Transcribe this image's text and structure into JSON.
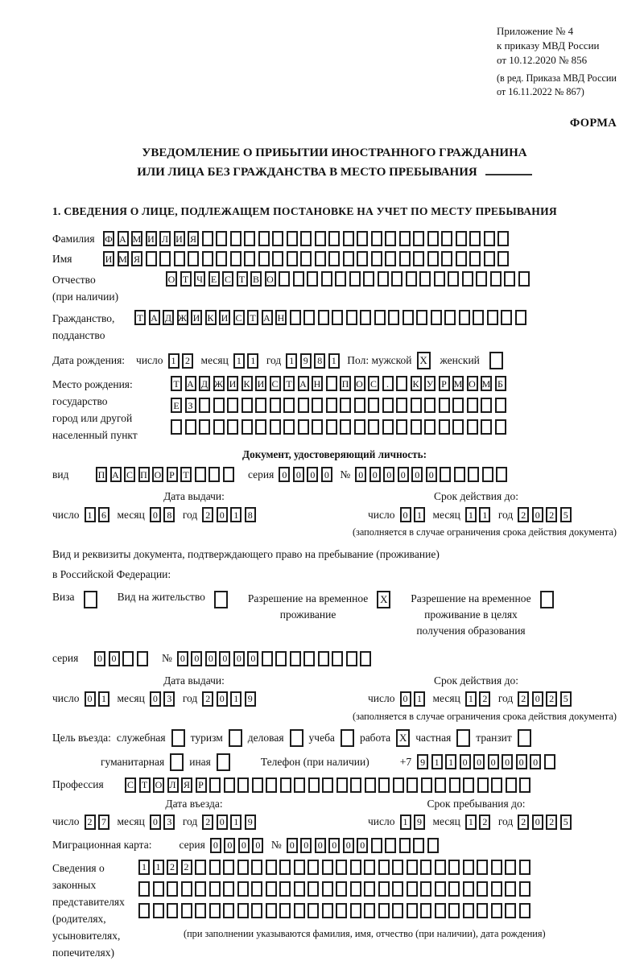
{
  "ink": "#1c1c1c",
  "header": {
    "line1": "Приложение № 4",
    "line2": "к приказу МВД России",
    "line3": "от 10.12.2020 № 856",
    "line4": "(в ред. Приказа МВД России",
    "line5": "от 16.11.2022 № 867)",
    "forma": "ФОРМА"
  },
  "title": {
    "line1": "УВЕДОМЛЕНИЕ О ПРИБЫТИИ ИНОСТРАННОГО ГРАЖДАНИНА",
    "line2": "ИЛИ ЛИЦА БЕЗ ГРАЖДАНСТВА В МЕСТО ПРЕБЫВАНИЯ"
  },
  "section1": "1. СВЕДЕНИЯ О ЛИЦЕ, ПОДЛЕЖАЩЕМ ПОСТАНОВКЕ НА УЧЕТ ПО МЕСТУ ПРЕБЫВАНИЯ",
  "surname": {
    "label": "Фамилия",
    "value": "ФАМИЛИЯ",
    "cells": 29
  },
  "firstname": {
    "label": "Имя",
    "value": "ИМЯ",
    "cells": 29
  },
  "patronymic": {
    "label1": "Отчество",
    "label2": "(при наличии)",
    "value": "ОТЧЕСТВО",
    "cells": 26
  },
  "citizenship": {
    "label1": "Гражданство,",
    "label2": "подданство",
    "value": "ТАДЖИКИСТАН",
    "cells": 28
  },
  "birth": {
    "label": "Дата рождения:",
    "day_label": "число",
    "day": {
      "value": "12",
      "cells": 2
    },
    "month_label": "месяц",
    "month": {
      "value": "11",
      "cells": 2
    },
    "year_label": "год",
    "year": {
      "value": "1981",
      "cells": 4
    },
    "sex_label": "Пол: мужской",
    "male_mark": "X",
    "female_label": "женский",
    "female_mark": ""
  },
  "birthplace": {
    "label1": "Место рождения:",
    "label2": "государство",
    "label3": "город или другой",
    "label4": "населенный пункт",
    "row1": {
      "value": "ТАДЖИКИСТАН ПОС. КУРМОМБ",
      "cells": 24
    },
    "row2": {
      "value": "ЕЗ",
      "cells": 24
    },
    "row3": {
      "value": "",
      "cells": 24
    }
  },
  "iddoc": {
    "heading": "Документ, удостоверяющий личность:",
    "kind_label": "вид",
    "kind": {
      "value": "ПАСПОРТ",
      "cells": 10
    },
    "series_label": "серия",
    "series": {
      "value": "0000",
      "cells": 4
    },
    "number_label": "№",
    "number": {
      "value": "000000",
      "cells": 11
    },
    "issue": {
      "header": "Дата выдачи:",
      "day_label": "число",
      "day": {
        "value": "16",
        "cells": 2
      },
      "month_label": "месяц",
      "month": {
        "value": "08",
        "cells": 2
      },
      "year_label": "год",
      "year": {
        "value": "2018",
        "cells": 4
      }
    },
    "valid": {
      "header": "Срок действия до:",
      "day_label": "число",
      "day": {
        "value": "01",
        "cells": 2
      },
      "month_label": "месяц",
      "month": {
        "value": "11",
        "cells": 2
      },
      "year_label": "год",
      "year": {
        "value": "2025",
        "cells": 4
      }
    },
    "note": "(заполняется в случае ограничения срока действия документа)"
  },
  "staydoc": {
    "intro1": "Вид и реквизиты документа, подтверждающего право на пребывание (проживание)",
    "intro2": "в Российской Федерации:",
    "visa_label": "Виза",
    "visa_mark": "",
    "residence_label": "Вид на жительство",
    "residence_mark": "",
    "rvp_label": "Разрешение на временное\nпроживание",
    "rvp_mark": "X",
    "rvp_edu_label": "Разрешение на временное\nпроживание в целях\nполучения образования",
    "rvp_edu_mark": "",
    "series_label": "серия",
    "series": {
      "value": "00",
      "cells": 4
    },
    "number_label": "№",
    "number": {
      "value": "000000",
      "cells": 14
    },
    "issue": {
      "header": "Дата выдачи:",
      "day_label": "число",
      "day": {
        "value": "01",
        "cells": 2
      },
      "month_label": "месяц",
      "month": {
        "value": "03",
        "cells": 2
      },
      "year_label": "год",
      "year": {
        "value": "2019",
        "cells": 4
      }
    },
    "valid": {
      "header": "Срок действия до:",
      "day_label": "число",
      "day": {
        "value": "01",
        "cells": 2
      },
      "month_label": "месяц",
      "month": {
        "value": "12",
        "cells": 2
      },
      "year_label": "год",
      "year": {
        "value": "2025",
        "cells": 4
      }
    },
    "note": "(заполняется в случае ограничения срока действия документа)"
  },
  "purpose": {
    "label": "Цель въезда:",
    "opt1": "служебная",
    "mark1": "",
    "opt2": "туризм",
    "mark2": "",
    "opt3": "деловая",
    "mark3": "",
    "opt4": "учеба",
    "mark4": "",
    "opt5": "работа",
    "mark5": "X",
    "opt6": "частная",
    "mark6": "",
    "opt7": "транзит",
    "mark7": "",
    "opt8": "гуманитарная",
    "mark8": "",
    "opt9": "иная",
    "mark9": ""
  },
  "phone": {
    "label": "Телефон (при наличии)",
    "prefix": "+7",
    "value": "911000000",
    "cells": 10
  },
  "profession": {
    "label": "Профессия",
    "value": "СТОЛЯР",
    "cells": 29
  },
  "entry": {
    "issue": {
      "header": "Дата въезда:",
      "day_label": "число",
      "day": {
        "value": "27",
        "cells": 2
      },
      "month_label": "месяц",
      "month": {
        "value": "03",
        "cells": 2
      },
      "year_label": "год",
      "year": {
        "value": "2019",
        "cells": 4
      }
    },
    "valid": {
      "header": "Срок пребывания до:",
      "day_label": "число",
      "day": {
        "value": "19",
        "cells": 2
      },
      "month_label": "месяц",
      "month": {
        "value": "12",
        "cells": 2
      },
      "year_label": "год",
      "year": {
        "value": "2025",
        "cells": 4
      }
    }
  },
  "migcard": {
    "label": "Миграционная карта:",
    "series_label": "серия",
    "series": {
      "value": "0000",
      "cells": 4
    },
    "number_label": "№",
    "number": {
      "value": "000000",
      "cells": 11
    }
  },
  "guardians": {
    "label1": "Сведения о",
    "label2": "законных",
    "label3": "представителях",
    "label4": "(родителях,",
    "label5": "усыновителях,",
    "label6": "попечителях)",
    "row1": {
      "value": "1122",
      "cells": 28
    },
    "row2": {
      "value": "",
      "cells": 28
    },
    "row3": {
      "value": "",
      "cells": 28
    },
    "note": "(при заполнении указываются фамилия, имя, отчество (при наличии), дата рождения)"
  }
}
